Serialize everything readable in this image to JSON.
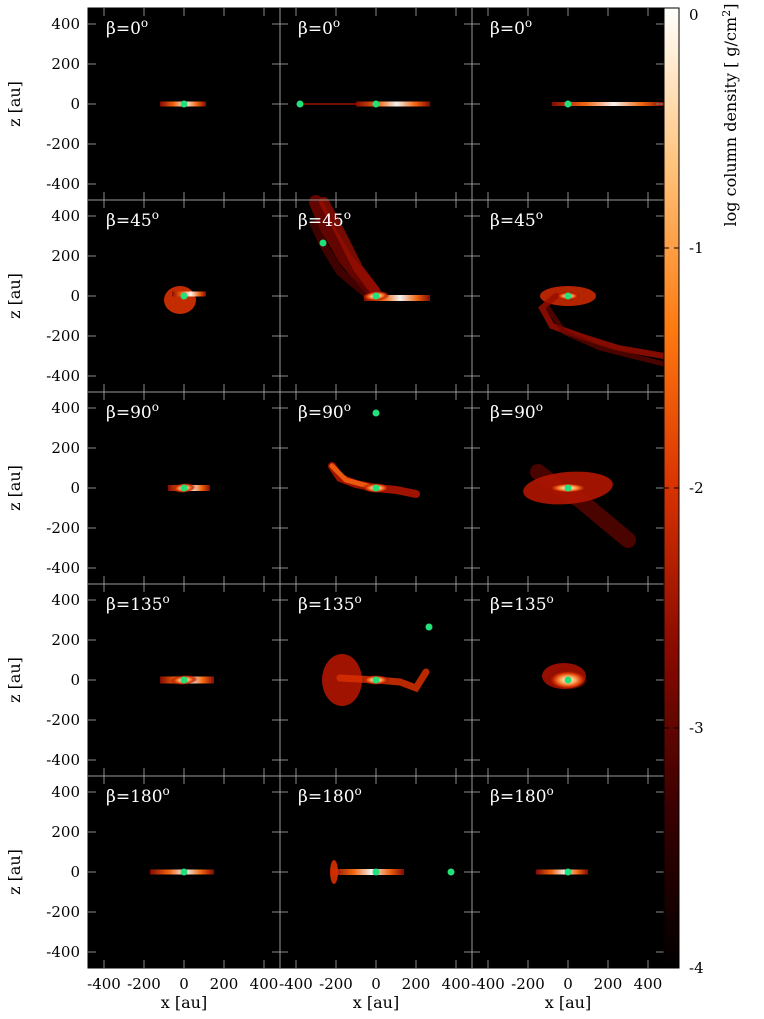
{
  "chart_data": {
    "type": "heatmap",
    "layout": {
      "rows": 5,
      "cols": 3
    },
    "xlabel": "x [au]",
    "ylabel": "z [au]",
    "xlim": [
      -480,
      480
    ],
    "ylim": [
      -480,
      480
    ],
    "xticks": [
      -400,
      -200,
      0,
      200,
      400
    ],
    "yticks": [
      -400,
      -200,
      0,
      200,
      400
    ],
    "xtick_labels": [
      "-400",
      "-200",
      "0",
      "200",
      "400"
    ],
    "ytick_labels": [
      "-400",
      "-200",
      "0",
      "200",
      "400"
    ],
    "colorbar": {
      "label": "log column density [ g/cm",
      "label_sup": "2",
      "label_end": "]",
      "range": [
        -4,
        0
      ],
      "ticks": [
        0,
        -1,
        -2,
        -3,
        -4
      ],
      "tick_labels": [
        "0",
        "-1",
        "-2",
        "-3",
        "-4"
      ],
      "colormap": [
        "#000000",
        "#3a0000",
        "#8a0a00",
        "#d83200",
        "#ff7a10",
        "#ffc27a",
        "#ffffff"
      ]
    },
    "marker_color": "#22e07a",
    "rows": [
      {
        "label": "β=0",
        "deg": "o",
        "panels": [
          {
            "markers": [
              [
                0,
                0
              ]
            ]
          },
          {
            "markers": [
              [
                0,
                0
              ],
              [
                -380,
                0
              ]
            ]
          },
          {
            "markers": [
              [
                0,
                0
              ]
            ]
          }
        ]
      },
      {
        "label": "β=45",
        "deg": "o",
        "panels": [
          {
            "markers": [
              [
                0,
                0
              ]
            ]
          },
          {
            "markers": [
              [
                0,
                0
              ],
              [
                -265,
                265
              ]
            ]
          },
          {
            "markers": [
              [
                0,
                0
              ]
            ]
          }
        ]
      },
      {
        "label": "β=90",
        "deg": "o",
        "panels": [
          {
            "markers": [
              [
                0,
                0
              ]
            ]
          },
          {
            "markers": [
              [
                0,
                0
              ],
              [
                0,
                375
              ]
            ]
          },
          {
            "markers": [
              [
                0,
                0
              ]
            ]
          }
        ]
      },
      {
        "label": "β=135",
        "deg": "o",
        "panels": [
          {
            "markers": [
              [
                0,
                0
              ]
            ]
          },
          {
            "markers": [
              [
                0,
                0
              ],
              [
                265,
                265
              ]
            ]
          },
          {
            "markers": [
              [
                0,
                0
              ]
            ]
          }
        ]
      },
      {
        "label": "β=180",
        "deg": "o",
        "panels": [
          {
            "markers": [
              [
                0,
                0
              ]
            ]
          },
          {
            "markers": [
              [
                0,
                0
              ],
              [
                375,
                0
              ]
            ]
          },
          {
            "markers": [
              [
                0,
                0
              ]
            ]
          }
        ]
      }
    ]
  }
}
